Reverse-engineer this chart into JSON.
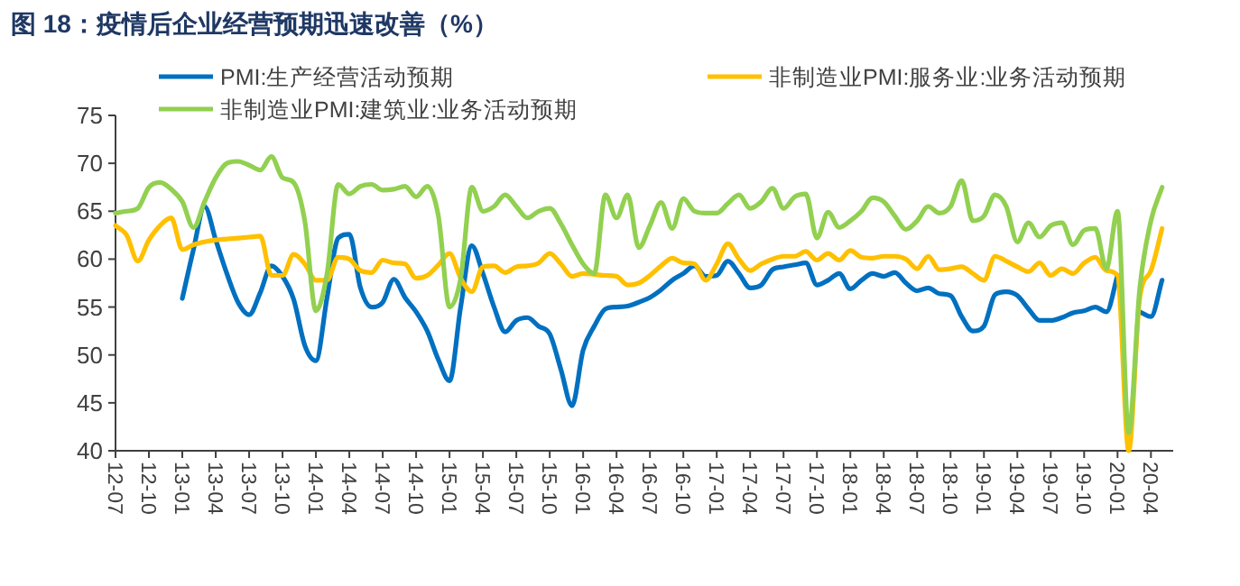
{
  "chart_data": {
    "type": "line",
    "title": "图 18：疫情后企业经营预期迅速改善（%）",
    "categories": [
      "12-07",
      null,
      null,
      "12-10",
      null,
      null,
      "13-01",
      null,
      null,
      "13-04",
      null,
      null,
      "13-07",
      null,
      null,
      "13-10",
      null,
      null,
      "14-01",
      null,
      null,
      "14-04",
      null,
      null,
      "14-07",
      null,
      null,
      "14-10",
      null,
      null,
      "15-01",
      null,
      null,
      "15-04",
      null,
      null,
      "15-07",
      null,
      null,
      "15-10",
      null,
      null,
      "16-01",
      null,
      null,
      "16-04",
      null,
      null,
      "16-07",
      null,
      null,
      "16-10",
      null,
      null,
      "17-01",
      null,
      null,
      "17-04",
      null,
      null,
      "17-07",
      null,
      null,
      "17-10",
      null,
      null,
      "18-01",
      null,
      null,
      "18-04",
      null,
      null,
      "18-07",
      null,
      null,
      "18-10",
      null,
      null,
      "19-01",
      null,
      null,
      "19-04",
      null,
      null,
      "19-07",
      null,
      null,
      "19-10",
      null,
      null,
      "20-01",
      null,
      null,
      "20-04",
      null
    ],
    "series": [
      {
        "name": "PMI:生产经营活动预期",
        "color": "#0070c0",
        "values": [
          null,
          null,
          null,
          null,
          null,
          null,
          55.9,
          61,
          65.5,
          62,
          58.5,
          55.5,
          54.2,
          56.5,
          59.3,
          58.2,
          55.8,
          51,
          49.4,
          56,
          62.2,
          62.6,
          57,
          55,
          55.5,
          57.9,
          56,
          54.5,
          52.5,
          49.5,
          47.3,
          55,
          61.4,
          58.5,
          55,
          52.4,
          53.6,
          53.9,
          53,
          52.2,
          48.5,
          44.7,
          50.5,
          53,
          54.8,
          55,
          55.1,
          55.5,
          56,
          56.8,
          57.8,
          58.5,
          59.3,
          58.2,
          58.3,
          59.8,
          58.5,
          57,
          57.3,
          58.9,
          59.2,
          59.4,
          59.6,
          57.3,
          57.8,
          58.5,
          56.9,
          57.8,
          58.5,
          58.2,
          58.6,
          57.5,
          56.7,
          57,
          56.4,
          56.2,
          54,
          52.5,
          53,
          56.3,
          56.6,
          56.2,
          54.8,
          53.6,
          53.6,
          53.9,
          54.4,
          54.6,
          55,
          54.5,
          58.3,
          null,
          54.5,
          54,
          57.8
        ]
      },
      {
        "name": "非制造业PMI:服务业:业务活动预期",
        "color": "#ffc000",
        "values": [
          63.5,
          62.5,
          59.8,
          62,
          63.5,
          64.3,
          61,
          61.5,
          61.8,
          62,
          62.1,
          62.2,
          62.3,
          62.4,
          58.3,
          58.3,
          60.5,
          59.5,
          57.8,
          57.8,
          60.2,
          60,
          58.8,
          58.6,
          59.9,
          59.6,
          59.5,
          58,
          58.3,
          59.4,
          60.6,
          58,
          56.6,
          59.2,
          59.3,
          58.6,
          59.2,
          59.3,
          59.6,
          60.6,
          59.5,
          58.2,
          58.5,
          58.4,
          58.3,
          58.2,
          57.3,
          57.5,
          58.3,
          59.3,
          60.1,
          59.6,
          59.5,
          57.8,
          59.5,
          61.6,
          60,
          58.8,
          59.5,
          60,
          60.3,
          60.3,
          60.8,
          59.9,
          60.6,
          59.9,
          60.9,
          60.2,
          60.1,
          60.3,
          60.3,
          60,
          59,
          60.3,
          58.9,
          59,
          59.2,
          58.5,
          57.8,
          60.3,
          59.8,
          59.2,
          58.7,
          59.6,
          58.3,
          59,
          58.5,
          59.6,
          60.2,
          58.8,
          58.3,
          40,
          56,
          58.8,
          63.2
        ]
      },
      {
        "name": "非制造业PMI:建筑业:业务活动预期",
        "color": "#92d050",
        "values": [
          64.8,
          65,
          65.3,
          67.5,
          68,
          67.3,
          66,
          63.3,
          66,
          68.5,
          70,
          70.2,
          69.8,
          69.3,
          70.7,
          68.5,
          68,
          64,
          54.6,
          58.5,
          67.8,
          66.8,
          67.6,
          67.8,
          67.2,
          67.3,
          67.6,
          66.5,
          67.6,
          64.5,
          55,
          58,
          67.5,
          65,
          65.5,
          66.7,
          65.5,
          64.3,
          65,
          65.3,
          63.7,
          61.5,
          59.5,
          58.5,
          66.7,
          64.3,
          66.7,
          61.2,
          63.5,
          65.9,
          63.2,
          66.3,
          65,
          64.8,
          64.8,
          65.8,
          66.7,
          65.3,
          66,
          67.4,
          65.3,
          66.5,
          66.8,
          62.2,
          64.9,
          63.3,
          64,
          65,
          66.4,
          66,
          64.5,
          63.1,
          64,
          65.5,
          64.8,
          65.5,
          68.2,
          64,
          64.5,
          66.7,
          65.5,
          61.8,
          63.8,
          62.3,
          63.5,
          63.8,
          61.5,
          63,
          63.2,
          59,
          65,
          41.9,
          57,
          64,
          67.5
        ]
      }
    ],
    "ylim": [
      40,
      75
    ],
    "yticks": [
      40,
      45,
      50,
      55,
      60,
      65,
      70,
      75
    ],
    "legend": "top",
    "marker": "none",
    "line_style": "solid"
  }
}
